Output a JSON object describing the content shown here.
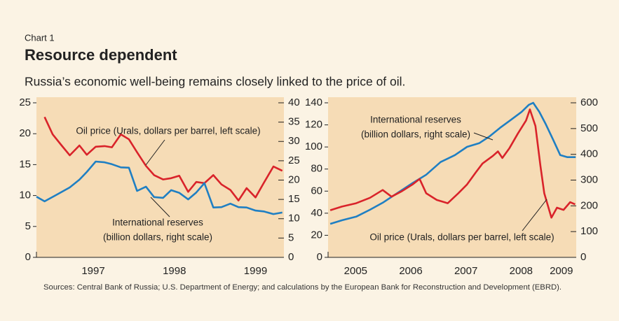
{
  "kicker": "Chart 1",
  "title": "Resource dependent",
  "subtitle": "Russia’s economic well-being remains closely linked to the price of oil.",
  "sources": "Sources: Central Bank of Russia; U.S. Department of Energy; and calculations by the European Bank for Reconstruction and Development (EBRD).",
  "chart_data": [
    {
      "type": "line",
      "xlim": [
        1996.8,
        1999.85
      ],
      "xticks": [
        {
          "value": 1997.5,
          "label": "1997"
        },
        {
          "value": 1998.5,
          "label": "1998"
        },
        {
          "value": 1999.5,
          "label": "1999"
        }
      ],
      "ylim": [
        0,
        25
      ],
      "yticks": [
        0,
        5,
        10,
        15,
        20,
        25
      ],
      "y2lim": [
        0,
        40
      ],
      "y2ticks": [
        0,
        5,
        10,
        15,
        20,
        25,
        30,
        35,
        40
      ],
      "series": [
        {
          "name": "Oil price (Urals, dollars per barrel, left scale)",
          "color": "#d9232a",
          "axis": "y",
          "x": [
            1996.9,
            1997.0,
            1997.11,
            1997.21,
            1997.33,
            1997.42,
            1997.53,
            1997.64,
            1997.73,
            1997.84,
            1997.94,
            1998.04,
            1998.15,
            1998.25,
            1998.36,
            1998.46,
            1998.56,
            1998.67,
            1998.77,
            1998.87,
            1998.98,
            1999.08,
            1999.19,
            1999.29,
            1999.39,
            1999.5,
            1999.6,
            1999.72,
            1999.83
          ],
          "values": [
            22.7,
            19.9,
            18.1,
            16.5,
            18.1,
            16.6,
            17.9,
            18.0,
            17.8,
            19.9,
            19.1,
            17.0,
            14.8,
            13.3,
            12.6,
            12.8,
            13.2,
            10.6,
            12.2,
            12.0,
            13.3,
            11.8,
            10.9,
            9.2,
            11.2,
            9.7,
            12.0,
            14.7,
            14.0
          ]
        },
        {
          "name": "International reserves",
          "unit": "(billion dollars, right scale)",
          "color": "#1f7fc3",
          "axis": "y2",
          "x": [
            1996.8,
            1996.9,
            1997.04,
            1997.21,
            1997.33,
            1997.42,
            1997.53,
            1997.64,
            1997.73,
            1997.84,
            1997.94,
            1998.04,
            1998.15,
            1998.25,
            1998.36,
            1998.46,
            1998.56,
            1998.67,
            1998.77,
            1998.87,
            1998.98,
            1999.08,
            1999.19,
            1999.29,
            1999.39,
            1999.5,
            1999.6,
            1999.72,
            1999.83
          ],
          "values": [
            15.7,
            14.5,
            16.1,
            18.1,
            20.1,
            22.1,
            24.8,
            24.6,
            24.1,
            23.3,
            23.2,
            17.2,
            18.3,
            15.6,
            15.4,
            17.4,
            16.7,
            15.0,
            16.8,
            19.2,
            12.9,
            13.0,
            13.9,
            13.0,
            12.9,
            12.1,
            11.9,
            11.2,
            11.6
          ]
        }
      ]
    },
    {
      "type": "line",
      "xlim": [
        2005,
        2009.5
      ],
      "xticks": [
        {
          "value": 2005.5,
          "label": "2005"
        },
        {
          "value": 2006.5,
          "label": "2006"
        },
        {
          "value": 2007.5,
          "label": "2007"
        },
        {
          "value": 2008.5,
          "label": "2008"
        },
        {
          "value": 2009.23,
          "label": "2009"
        }
      ],
      "ylim": [
        0,
        140
      ],
      "yticks": [
        0,
        20,
        40,
        60,
        80,
        100,
        120,
        140
      ],
      "y2lim": [
        0,
        600
      ],
      "y2ticks": [
        0,
        100,
        200,
        300,
        400,
        500,
        600
      ],
      "series": [
        {
          "name": "International reserves",
          "unit": "(billion dollars, right scale)",
          "color": "#1f7fc3",
          "axis": "y2",
          "x": [
            2005.04,
            2005.25,
            2005.51,
            2005.76,
            2005.99,
            2006.28,
            2006.53,
            2006.78,
            2007.04,
            2007.3,
            2007.52,
            2007.74,
            2007.93,
            2008.12,
            2008.31,
            2008.51,
            2008.64,
            2008.72,
            2008.83,
            2008.95,
            2009.08,
            2009.21,
            2009.34,
            2009.49
          ],
          "values": [
            130,
            144,
            158,
            185,
            212,
            253,
            288,
            321,
            370,
            397,
            429,
            443,
            470,
            503,
            533,
            565,
            592,
            600,
            565,
            516,
            457,
            397,
            389,
            389
          ]
        },
        {
          "name": "Oil price (Urals, dollars per barrel, left scale)",
          "color": "#d9232a",
          "axis": "y",
          "x": [
            2005.04,
            2005.25,
            2005.51,
            2005.76,
            2005.99,
            2006.15,
            2006.34,
            2006.53,
            2006.66,
            2006.78,
            2006.97,
            2007.17,
            2007.36,
            2007.52,
            2007.68,
            2007.8,
            2007.99,
            2008.08,
            2008.16,
            2008.29,
            2008.44,
            2008.59,
            2008.66,
            2008.76,
            2008.85,
            2008.92,
            2009.05,
            2009.15,
            2009.27,
            2009.39,
            2009.48
          ],
          "values": [
            42.7,
            46,
            49,
            54,
            61,
            55,
            60,
            66,
            71,
            58,
            52,
            49,
            58,
            66,
            77,
            85,
            92,
            96,
            90,
            99,
            112,
            124,
            134,
            119,
            83,
            58,
            36,
            45,
            43,
            50,
            48
          ]
        }
      ]
    }
  ]
}
